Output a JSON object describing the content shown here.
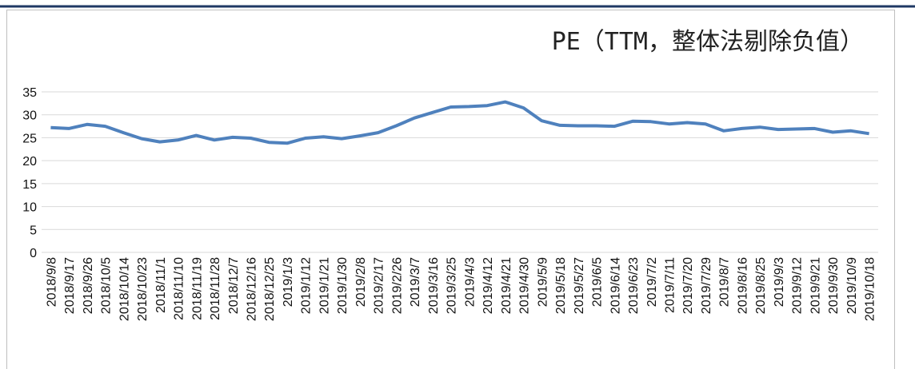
{
  "chart_data": {
    "type": "line",
    "title": "PE（TTM，整体法剔除负值）",
    "categories": [
      "2018/9/8",
      "2018/9/17",
      "2018/9/26",
      "2018/10/5",
      "2018/10/14",
      "2018/10/23",
      "2018/11/1",
      "2018/11/10",
      "2018/11/19",
      "2018/11/28",
      "2018/12/7",
      "2018/12/16",
      "2018/12/25",
      "2019/1/3",
      "2019/1/12",
      "2019/1/21",
      "2019/1/30",
      "2019/2/8",
      "2019/2/17",
      "2019/2/26",
      "2019/3/7",
      "2019/3/16",
      "2019/3/25",
      "2019/4/3",
      "2019/4/12",
      "2019/4/21",
      "2019/4/30",
      "2019/5/9",
      "2019/5/18",
      "2019/5/27",
      "2019/6/5",
      "2019/6/14",
      "2019/6/23",
      "2019/7/2",
      "2019/7/11",
      "2019/7/20",
      "2019/7/29",
      "2019/8/7",
      "2019/8/16",
      "2019/8/25",
      "2019/9/3",
      "2019/9/12",
      "2019/9/21",
      "2019/9/30",
      "2019/10/9",
      "2019/10/18"
    ],
    "values": [
      27.2,
      27.0,
      27.9,
      27.5,
      26.1,
      24.8,
      24.1,
      24.5,
      25.5,
      24.5,
      25.1,
      24.9,
      24.0,
      23.8,
      24.9,
      25.2,
      24.8,
      25.4,
      26.1,
      27.6,
      29.3,
      30.5,
      31.7,
      31.8,
      32.0,
      32.8,
      31.5,
      28.7,
      27.7,
      27.6,
      27.6,
      27.5,
      28.6,
      28.5,
      28.0,
      28.3,
      28.0,
      26.5,
      27.0,
      27.3,
      26.8,
      26.9,
      27.0,
      26.2,
      26.5,
      25.9
    ],
    "color": "#4f81bd",
    "ylim": [
      0,
      35
    ],
    "yticks": [
      0,
      5,
      10,
      15,
      20,
      25,
      30,
      35
    ],
    "grid": true
  }
}
